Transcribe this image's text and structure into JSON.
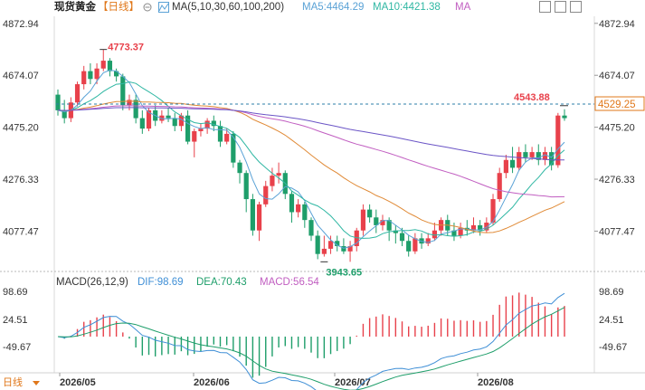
{
  "header": {
    "title": "现货黄金",
    "period": "【日线】",
    "ma_label": "MA(5,10,30,60,100,200)",
    "ma5": "MA5:4464.29",
    "ma10": "MA10:4421.38",
    "ma_more": "MA"
  },
  "macd_header": {
    "label": "MACD(26,12,9)",
    "dif": "DIF:98.69",
    "dea": "DEA:70.43",
    "macd": "MACD:56.54"
  },
  "footer": {
    "period": "日线"
  },
  "colors": {
    "up": "#e8414b",
    "down": "#1e9e6a",
    "ma5": "#5aa2d6",
    "ma10": "#2fb7a3",
    "ma30": "#e08a36",
    "ma60": "#c15ec1",
    "ma100": "#6b55c6",
    "dif": "#3f8fd6",
    "dea": "#1e9e6a",
    "dashed": "#2e7fa8",
    "price_label": "#e0781b"
  },
  "chart_data": {
    "type": "candlestick",
    "y_ticks": [
      "4872.94",
      "4674.07",
      "4475.20",
      "4276.33",
      "4077.47"
    ],
    "x_ticks": [
      "2026/05",
      "2026/06",
      "2026/07",
      "2026/08"
    ],
    "price_range": [
      3930,
      4900
    ],
    "annotations": {
      "high": "4773.37",
      "low": "3943.65",
      "recent_high": "4543.88",
      "last_price": "4529.25"
    },
    "candles": [
      [
        4600,
        4540,
        4620,
        4520
      ],
      [
        4540,
        4510,
        4580,
        4490
      ],
      [
        4510,
        4570,
        4590,
        4495
      ],
      [
        4570,
        4640,
        4650,
        4555
      ],
      [
        4640,
        4690,
        4710,
        4620
      ],
      [
        4690,
        4660,
        4720,
        4640
      ],
      [
        4660,
        4700,
        4720,
        4640
      ],
      [
        4700,
        4730,
        4773,
        4690
      ],
      [
        4730,
        4690,
        4740,
        4670
      ],
      [
        4690,
        4670,
        4700,
        4650
      ],
      [
        4670,
        4560,
        4680,
        4540
      ],
      [
        4560,
        4580,
        4600,
        4540
      ],
      [
        4580,
        4510,
        4600,
        4490
      ],
      [
        4510,
        4470,
        4540,
        4450
      ],
      [
        4470,
        4540,
        4550,
        4460
      ],
      [
        4540,
        4500,
        4560,
        4480
      ],
      [
        4500,
        4520,
        4540,
        4490
      ],
      [
        4520,
        4510,
        4550,
        4495
      ],
      [
        4510,
        4480,
        4530,
        4460
      ],
      [
        4480,
        4520,
        4530,
        4460
      ],
      [
        4520,
        4420,
        4540,
        4410
      ],
      [
        4420,
        4460,
        4470,
        4360
      ],
      [
        4460,
        4470,
        4490,
        4440
      ],
      [
        4470,
        4500,
        4510,
        4450
      ],
      [
        4500,
        4480,
        4520,
        4460
      ],
      [
        4480,
        4420,
        4500,
        4400
      ],
      [
        4420,
        4450,
        4470,
        4410
      ],
      [
        4450,
        4340,
        4460,
        4320
      ],
      [
        4340,
        4300,
        4350,
        4260
      ],
      [
        4300,
        4200,
        4310,
        4150
      ],
      [
        4200,
        4080,
        4220,
        4060
      ],
      [
        4080,
        4180,
        4190,
        4040
      ],
      [
        4180,
        4250,
        4270,
        4170
      ],
      [
        4250,
        4290,
        4320,
        4230
      ],
      [
        4290,
        4300,
        4340,
        4260
      ],
      [
        4300,
        4220,
        4310,
        4200
      ],
      [
        4220,
        4150,
        4230,
        4110
      ],
      [
        4150,
        4180,
        4200,
        4130
      ],
      [
        4180,
        4120,
        4190,
        4090
      ],
      [
        4120,
        4060,
        4130,
        4040
      ],
      [
        4060,
        3990,
        4080,
        3970
      ],
      [
        3990,
        4010,
        4060,
        3980
      ],
      [
        4010,
        4040,
        4060,
        3990
      ],
      [
        4040,
        4020,
        4060,
        4000
      ],
      [
        4020,
        4000,
        4050,
        3990
      ],
      [
        4000,
        4020,
        4040,
        3960
      ],
      [
        4020,
        4080,
        4090,
        4000
      ],
      [
        4080,
        4160,
        4180,
        4060
      ],
      [
        4160,
        4130,
        4180,
        4110
      ],
      [
        4130,
        4100,
        4160,
        4070
      ],
      [
        4100,
        4120,
        4140,
        4080
      ],
      [
        4120,
        4080,
        4130,
        4040
      ],
      [
        4080,
        4070,
        4100,
        4030
      ],
      [
        4070,
        4040,
        4090,
        4020
      ],
      [
        4040,
        4000,
        4060,
        3980
      ],
      [
        4000,
        4050,
        4070,
        3990
      ],
      [
        4050,
        4030,
        4070,
        4010
      ],
      [
        4030,
        4050,
        4070,
        4020
      ],
      [
        4050,
        4080,
        4110,
        4040
      ],
      [
        4080,
        4120,
        4130,
        4060
      ],
      [
        4120,
        4080,
        4140,
        4060
      ],
      [
        4080,
        4060,
        4110,
        4040
      ],
      [
        4060,
        4090,
        4110,
        4050
      ],
      [
        4090,
        4080,
        4120,
        4060
      ],
      [
        4080,
        4100,
        4130,
        4070
      ],
      [
        4100,
        4080,
        4120,
        4060
      ],
      [
        4080,
        4110,
        4130,
        4070
      ],
      [
        4110,
        4200,
        4220,
        4100
      ],
      [
        4200,
        4300,
        4320,
        4190
      ],
      [
        4300,
        4350,
        4370,
        4280
      ],
      [
        4350,
        4320,
        4400,
        4300
      ],
      [
        4320,
        4380,
        4400,
        4310
      ],
      [
        4380,
        4360,
        4410,
        4340
      ],
      [
        4360,
        4380,
        4400,
        4350
      ],
      [
        4380,
        4350,
        4410,
        4330
      ],
      [
        4350,
        4380,
        4400,
        4330
      ],
      [
        4380,
        4330,
        4400,
        4310
      ],
      [
        4330,
        4520,
        4530,
        4320
      ],
      [
        4520,
        4510,
        4544,
        4500
      ]
    ],
    "macd_hist_scale": [
      -120,
      140
    ]
  }
}
